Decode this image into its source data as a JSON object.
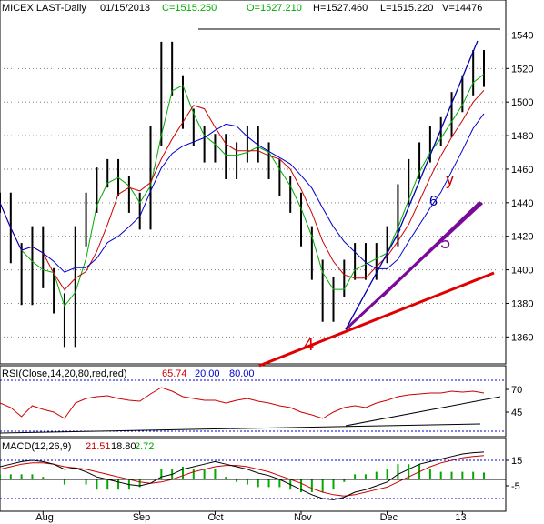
{
  "header": {
    "symbol": "MICEX LAST-Daily",
    "date": "01/15/2013",
    "close": "C=1515.250",
    "open": "O=1527.210",
    "high": "H=1527.460",
    "low": "L=1515.220",
    "volume": "V=14476"
  },
  "rsi_header": {
    "label": "RSI(Close,14,20,80,red,red)",
    "value": "65.74",
    "lower": "20.00",
    "upper": "80.00"
  },
  "macd_header": {
    "label": "MACD(12,26,9)",
    "macd": "21.51",
    "signal": "18.80",
    "hist": "2.72"
  },
  "annotations": {
    "wave4": "4",
    "wave5": "5",
    "wave6": "6",
    "waveY": "y"
  },
  "colors": {
    "price": "#000000",
    "ma_short": "#cc0000",
    "ma_mid": "#00aa00",
    "ma_long": "#0000cc",
    "rsi": "#cc0000",
    "macd": "#000000",
    "signal": "#cc0000",
    "hist": "#00aa00",
    "trend_red": "#e00000",
    "trend_purple": "#7a0a9a",
    "trend_blue": "#0000aa"
  },
  "chart_data": [
    {
      "type": "line",
      "name": "price",
      "x_tick_labels": [
        "Aug",
        "Sep",
        "Oct",
        "Nov",
        "Dec",
        "13"
      ],
      "y_ticks": [
        1360,
        1380,
        1400,
        1420,
        1440,
        1460,
        1480,
        1500,
        1520,
        1540
      ],
      "ylim": [
        1345,
        1550
      ],
      "x": [
        "Jul-16",
        "Jul-20",
        "Jul-24",
        "Jul-28",
        "Aug-01",
        "Aug-05",
        "Aug-09",
        "Aug-13",
        "Aug-17",
        "Aug-21",
        "Aug-25",
        "Aug-29",
        "Sep-02",
        "Sep-06",
        "Sep-10",
        "Sep-14",
        "Sep-18",
        "Sep-22",
        "Sep-26",
        "Sep-30",
        "Oct-04",
        "Oct-08",
        "Oct-12",
        "Oct-16",
        "Oct-20",
        "Oct-24",
        "Oct-28",
        "Nov-01",
        "Nov-05",
        "Nov-09",
        "Nov-13",
        "Nov-17",
        "Nov-21",
        "Nov-25",
        "Nov-29",
        "Dec-03",
        "Dec-07",
        "Dec-11",
        "Dec-15",
        "Dec-19",
        "Dec-23",
        "Dec-27",
        "Jan-04",
        "Jan-08",
        "Jan-12",
        "Jan-15"
      ],
      "close": [
        1440,
        1410,
        1385,
        1420,
        1395,
        1380,
        1360,
        1420,
        1440,
        1455,
        1460,
        1450,
        1440,
        1430,
        1480,
        1530,
        1510,
        1490,
        1480,
        1470,
        1475,
        1460,
        1470,
        1480,
        1470,
        1460,
        1450,
        1440,
        1420,
        1400,
        1375,
        1390,
        1400,
        1410,
        1400,
        1410,
        1420,
        1445,
        1460,
        1470,
        1480,
        1485,
        1500,
        1510,
        1525,
        1515
      ]
    },
    {
      "type": "line",
      "name": "rsi",
      "y_ticks": [
        45,
        70
      ],
      "values": [
        55,
        50,
        40,
        52,
        48,
        45,
        38,
        55,
        60,
        62,
        63,
        60,
        58,
        57,
        65,
        72,
        68,
        62,
        60,
        58,
        58,
        55,
        58,
        60,
        57,
        55,
        52,
        50,
        45,
        42,
        38,
        45,
        50,
        52,
        50,
        55,
        58,
        62,
        64,
        65,
        66,
        66,
        68,
        67,
        68,
        66
      ]
    },
    {
      "type": "line",
      "name": "macd",
      "y_ticks": [
        15,
        -5
      ],
      "macd": [
        10,
        12,
        14,
        15,
        14,
        12,
        8,
        9,
        6,
        2,
        0,
        -2,
        -4,
        -5,
        -3,
        2,
        4,
        8,
        10,
        12,
        14,
        12,
        10,
        8,
        5,
        3,
        0,
        -4,
        -8,
        -12,
        -15,
        -16,
        -14,
        -10,
        -8,
        -5,
        -2,
        4,
        8,
        12,
        14,
        16,
        18,
        20,
        21,
        21.5
      ],
      "signal": [
        8,
        10,
        12,
        13,
        13,
        12,
        10,
        9,
        8,
        6,
        4,
        2,
        0,
        -2,
        -3,
        -2,
        0,
        3,
        6,
        8,
        10,
        11,
        11,
        10,
        8,
        6,
        3,
        0,
        -3,
        -7,
        -10,
        -12,
        -13,
        -12,
        -10,
        -8,
        -6,
        -2,
        2,
        6,
        10,
        13,
        15,
        17,
        18,
        18.8
      ]
    }
  ]
}
